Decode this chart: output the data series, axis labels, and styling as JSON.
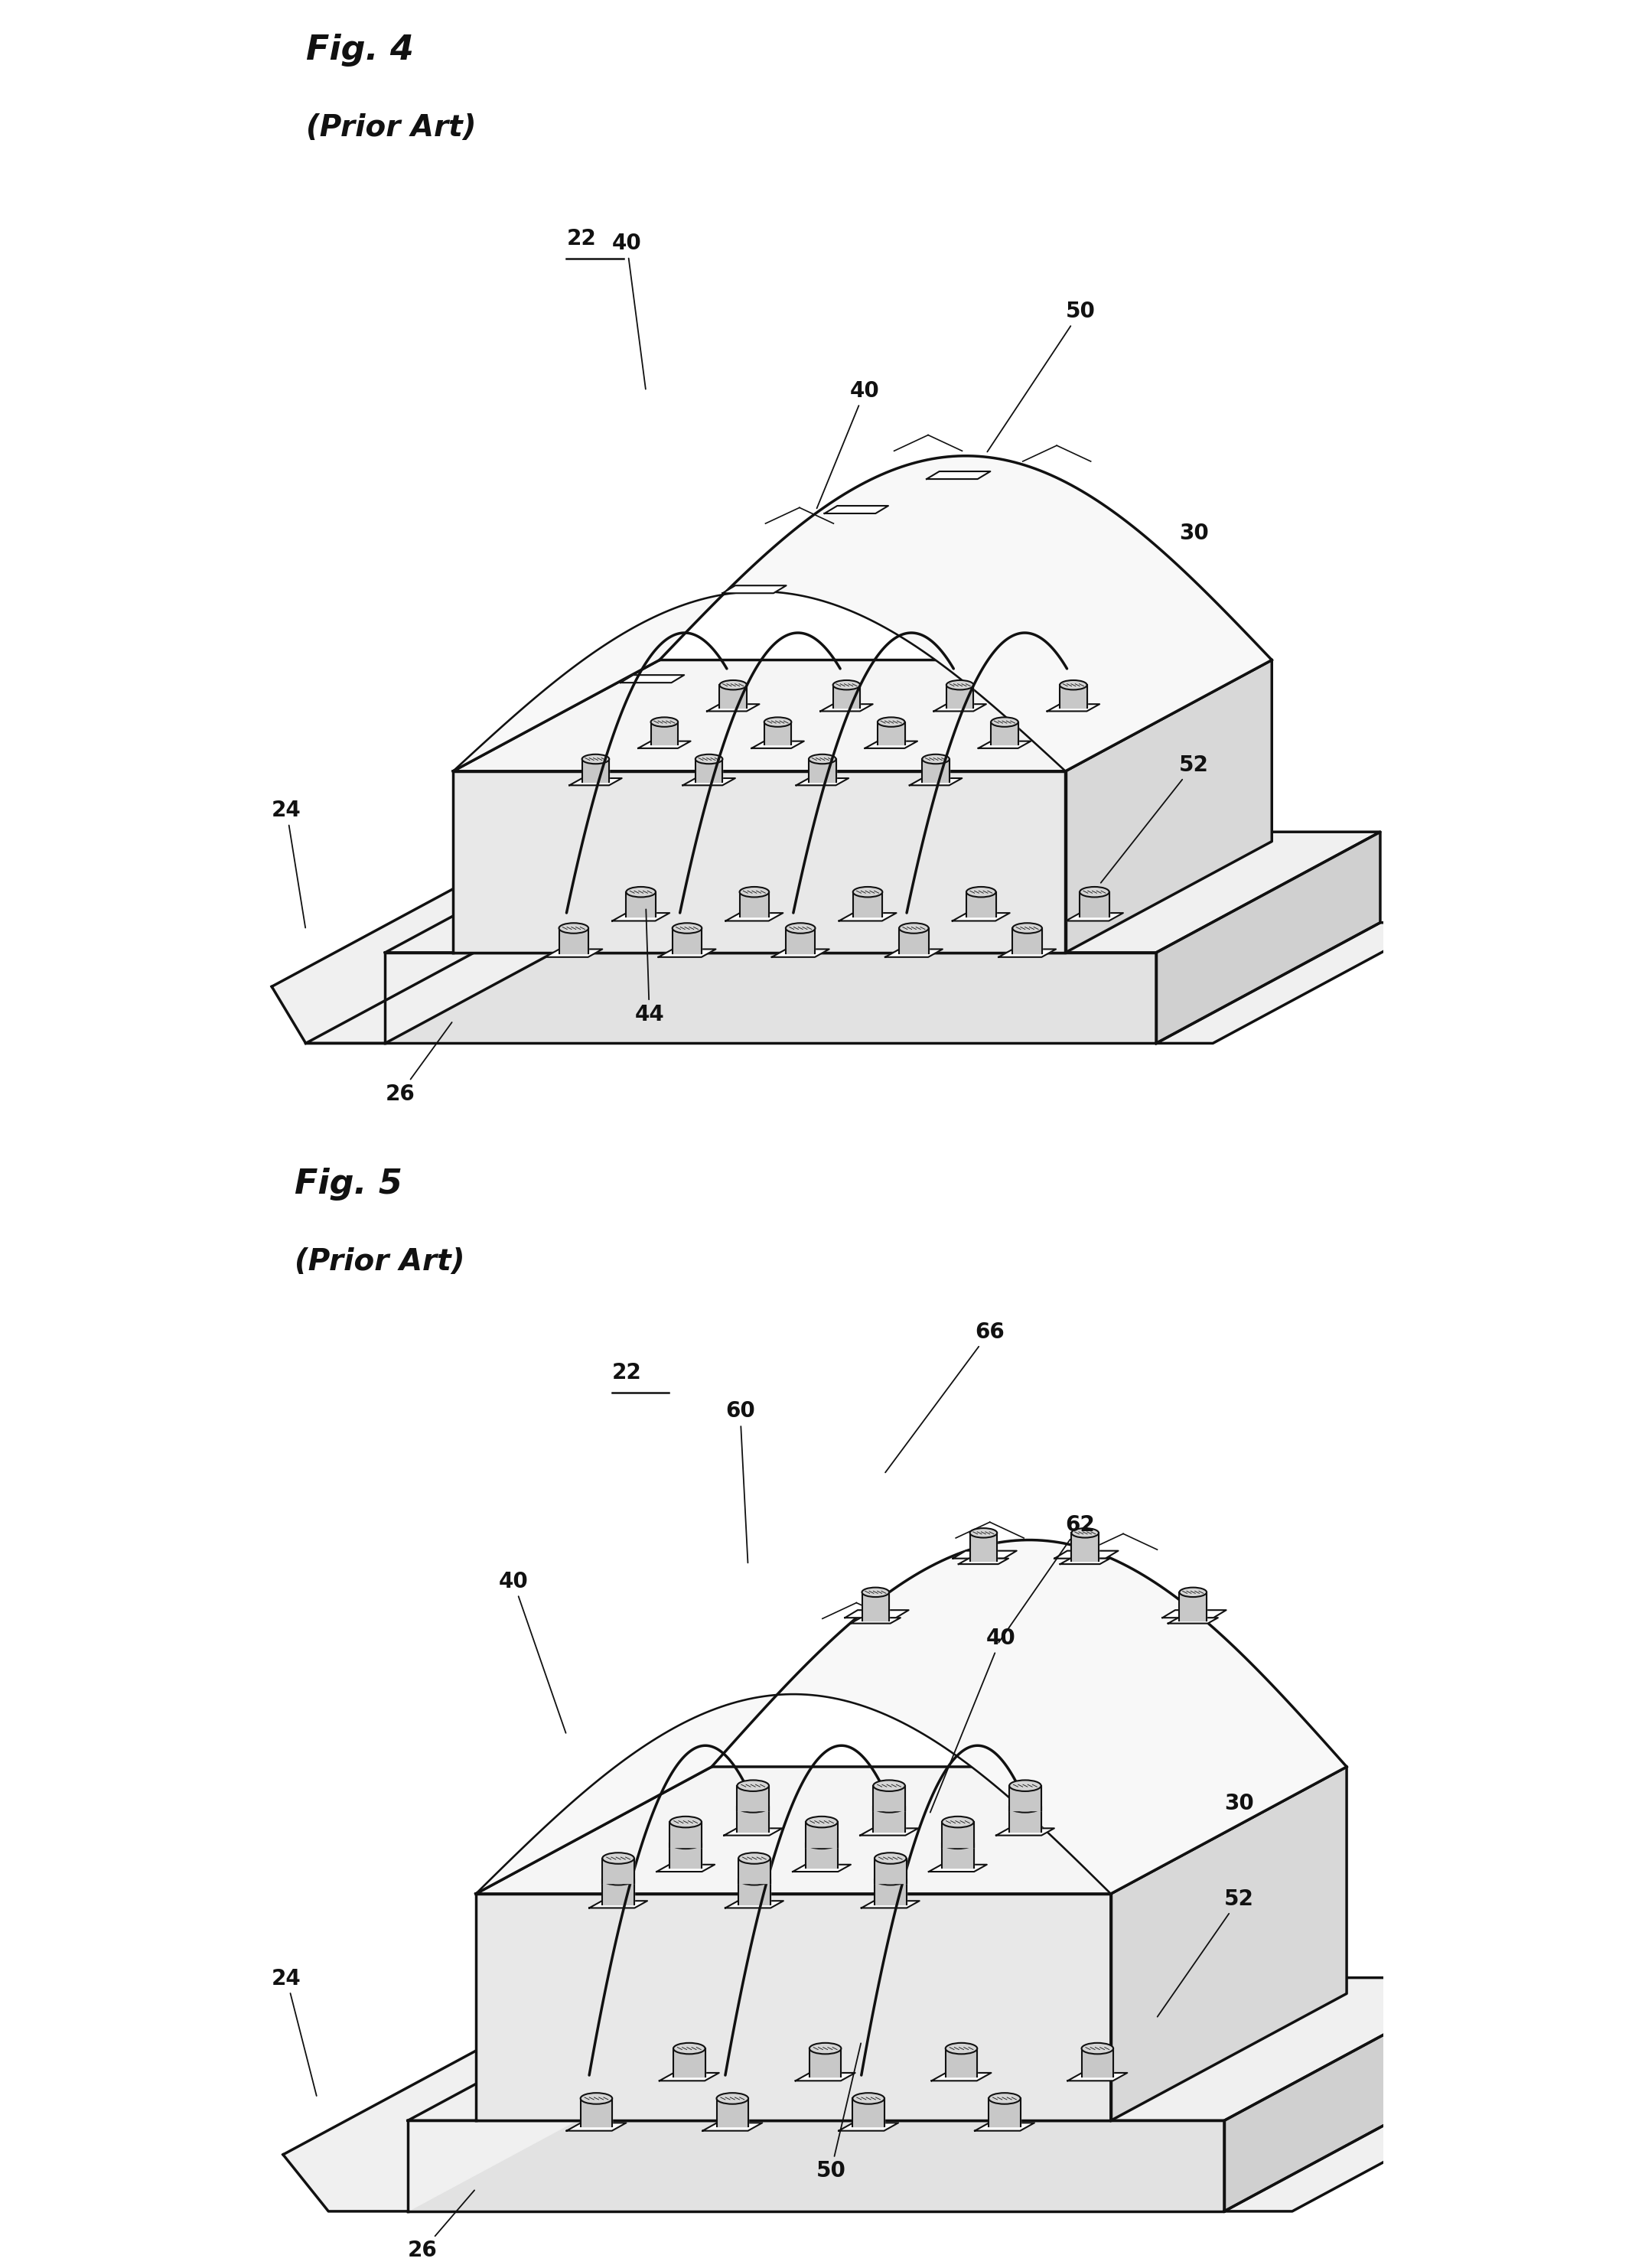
{
  "fig_width": 21.33,
  "fig_height": 29.64,
  "bg": "#ffffff",
  "lc": "#111111",
  "lw": 2.5,
  "tlw": 1.5,
  "fig4_title": "Fig. 4",
  "fig4_sub": "(Prior Art)",
  "fig5_title": "Fig. 5",
  "fig5_sub": "(Prior Art)",
  "label_fs": 20,
  "title_fs": 32,
  "sub_fs": 28
}
